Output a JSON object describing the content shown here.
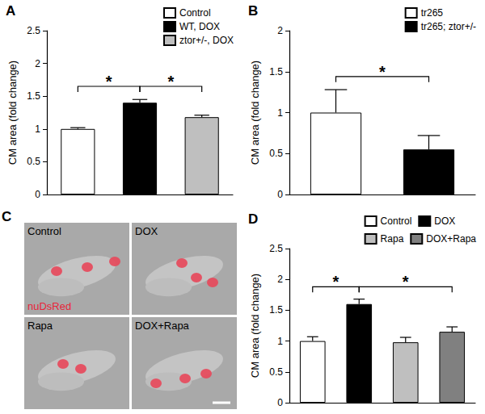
{
  "chart_data": [
    {
      "type": "bar",
      "title": "A",
      "ylabel": "CM area (fold change)",
      "categories": [
        "Control",
        "WT, DOX",
        "ztor+/-, DOX"
      ],
      "values": [
        1.0,
        1.4,
        1.18
      ],
      "errors": [
        0.02,
        0.05,
        0.03
      ],
      "colors": [
        "#ffffff",
        "#000000",
        "#bfbfbf"
      ],
      "ylim": [
        0,
        2.5
      ],
      "yticks": [
        0,
        0.5,
        1,
        1.5,
        2,
        2.5
      ],
      "legend": "top-right",
      "tick_labels": "y",
      "grid": false,
      "significance": [
        {
          "from": 0,
          "to": 1,
          "label": "*"
        },
        {
          "from": 1,
          "to": 2,
          "label": "*"
        }
      ]
    },
    {
      "type": "bar",
      "title": "B",
      "ylabel": "CM area (fold change)",
      "categories": [
        "tr265",
        "tr265; ztor+/-"
      ],
      "values": [
        1.0,
        0.55
      ],
      "errors": [
        0.28,
        0.17
      ],
      "colors": [
        "#ffffff",
        "#000000"
      ],
      "ylim": [
        0,
        2
      ],
      "yticks": [
        0,
        0.5,
        1,
        1.5,
        2
      ],
      "legend": "top-right",
      "tick_labels": "y",
      "grid": false,
      "significance": [
        {
          "from": 0,
          "to": 1,
          "label": "*"
        }
      ]
    },
    {
      "type": "bar",
      "title": "D",
      "ylabel": "CM area (fold change)",
      "categories": [
        "Control",
        "DOX",
        "Rapa",
        "DOX+Rapa"
      ],
      "values": [
        1.0,
        1.6,
        0.98,
        1.15
      ],
      "errors": [
        0.07,
        0.08,
        0.08,
        0.08
      ],
      "colors": [
        "#ffffff",
        "#000000",
        "#bfbfbf",
        "#808080"
      ],
      "ylim": [
        0,
        2.5
      ],
      "yticks": [
        0,
        0.5,
        1,
        1.5,
        2,
        2.5
      ],
      "legend": "top-right",
      "tick_labels": "y",
      "grid": false,
      "significance": [
        {
          "from": 0,
          "to": 1,
          "label": "*"
        },
        {
          "from": 1,
          "to": 3,
          "label": "*"
        }
      ]
    }
  ],
  "micrograph": {
    "title": "C",
    "stain": "nuDsRed",
    "panels": [
      "Control",
      "DOX",
      "Rapa",
      "DOX+Rapa"
    ]
  }
}
